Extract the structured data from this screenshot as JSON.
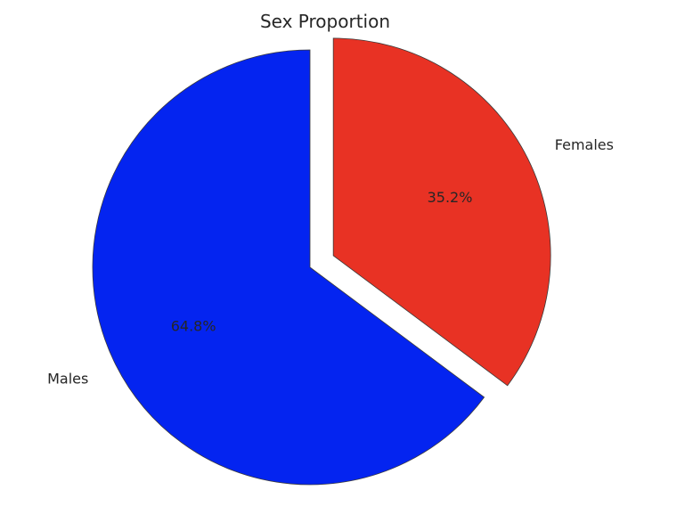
{
  "chart_data": {
    "type": "pie",
    "title": "Sex Proportion",
    "slices": [
      {
        "label": "Males",
        "value": 64.8,
        "pct_label": "64.8%",
        "color": "#0424f0",
        "explode": 0
      },
      {
        "label": "Females",
        "value": 35.2,
        "pct_label": "35.2%",
        "color": "#e83224",
        "explode": 0.12
      }
    ],
    "start_angle_deg": 90,
    "direction": "counterclockwise",
    "edge_color": "#3a3a3a"
  }
}
